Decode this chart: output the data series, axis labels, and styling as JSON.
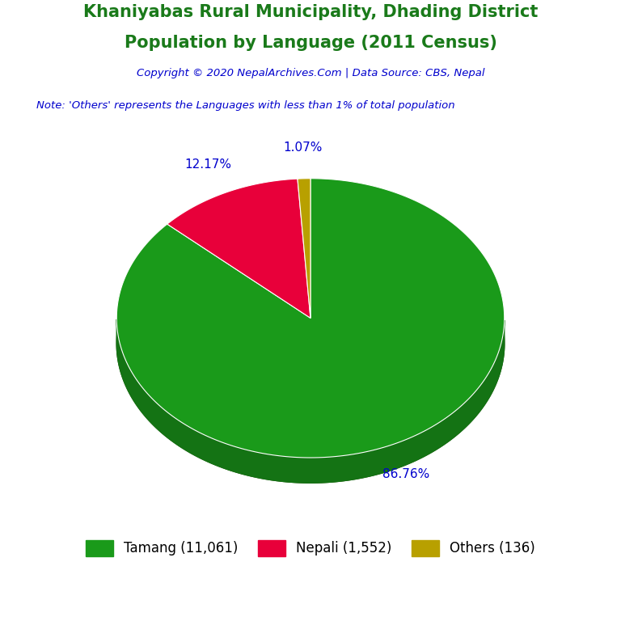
{
  "title_line1": "Khaniyabas Rural Municipality, Dhading District",
  "title_line2": "Population by Language (2011 Census)",
  "title_color": "#1a7a1a",
  "copyright_text": "Copyright © 2020 NepalArchives.Com | Data Source: CBS, Nepal",
  "copyright_color": "#0000cd",
  "note_text": "Note: 'Others' represents the Languages with less than 1% of total population",
  "note_color": "#0000cd",
  "labels": [
    "Tamang",
    "Nepali",
    "Others"
  ],
  "values": [
    11061,
    1552,
    136
  ],
  "percentages": [
    "86.76%",
    "12.17%",
    "1.07%"
  ],
  "colors": [
    "#1a9a1a",
    "#e8003a",
    "#b8a000"
  ],
  "shadow_color": "#1a4500",
  "legend_labels": [
    "Tamang (11,061)",
    "Nepali (1,552)",
    "Others (136)"
  ],
  "background_color": "#ffffff",
  "label_color": "#0000cd",
  "startangle": 90
}
